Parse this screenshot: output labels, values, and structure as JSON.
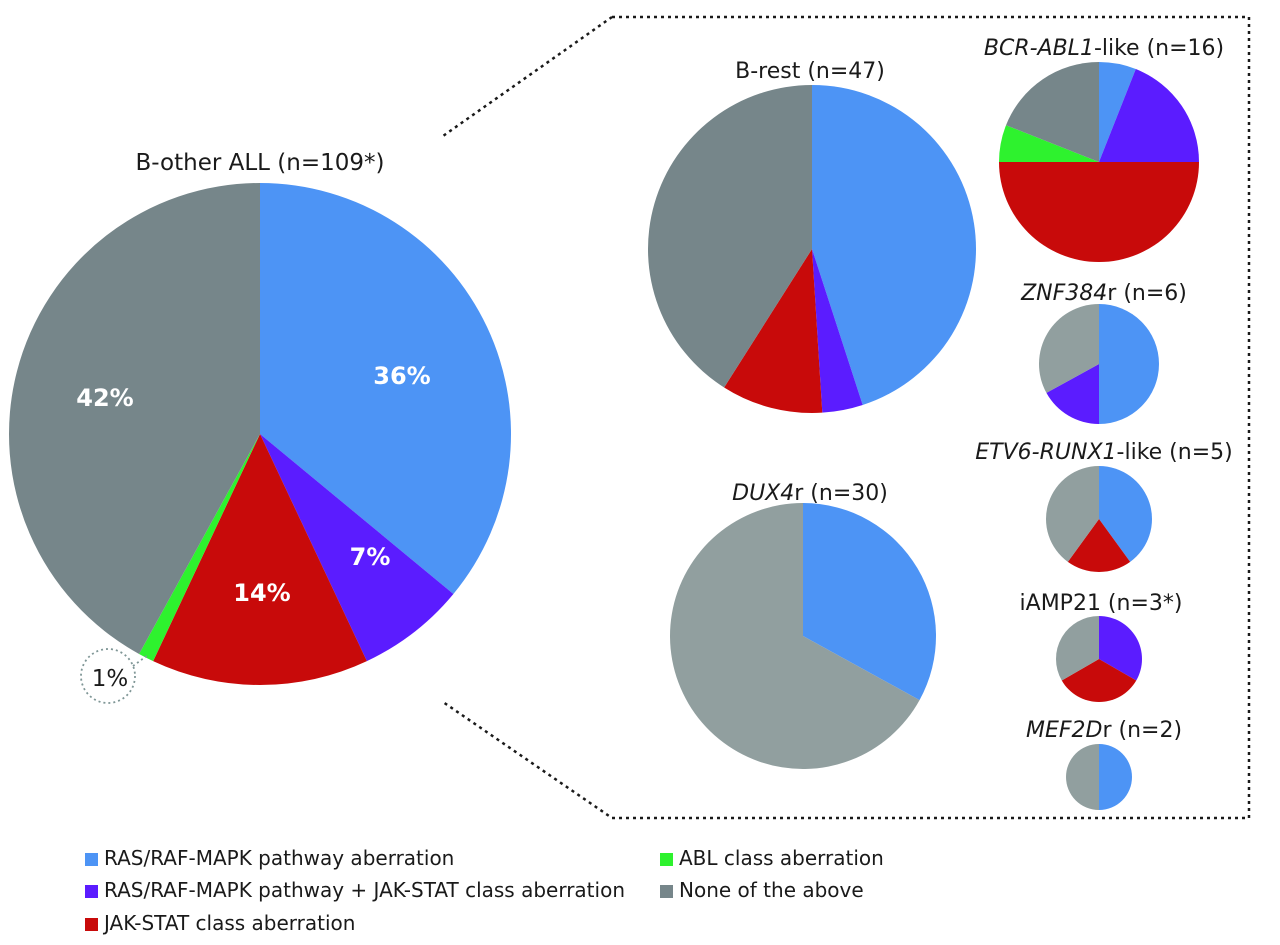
{
  "colors": {
    "ras": "#4d94f5",
    "ras_jak": "#5b1cff",
    "jak": "#c80a0a",
    "abl": "#2ef22e",
    "none": "#76868a",
    "none_light": "#919f9f"
  },
  "legend": {
    "items": [
      {
        "key": "ras",
        "label": "RAS/RAF-MAPK pathway aberration"
      },
      {
        "key": "ras_jak",
        "label": "RAS/RAF-MAPK pathway + JAK-STAT class aberration"
      },
      {
        "key": "jak",
        "label": "JAK-STAT class aberration"
      },
      {
        "key": "abl",
        "label": "ABL class aberration"
      },
      {
        "key": "none",
        "label": "None of the above"
      }
    ]
  },
  "chart_data": [
    {
      "type": "pie",
      "id": "main",
      "title": "B-other ALL (n=109*)",
      "slices": [
        {
          "key": "ras",
          "value": 36,
          "label": "36%"
        },
        {
          "key": "ras_jak",
          "value": 7,
          "label": "7%"
        },
        {
          "key": "jak",
          "value": 14,
          "label": "14%"
        },
        {
          "key": "abl",
          "value": 1,
          "label": "1%"
        },
        {
          "key": "none",
          "value": 42,
          "label": "42%"
        }
      ]
    },
    {
      "type": "pie",
      "id": "b-rest",
      "title": "B-rest (n=47)",
      "slices": [
        {
          "key": "ras",
          "value": 45
        },
        {
          "key": "ras_jak",
          "value": 4
        },
        {
          "key": "jak",
          "value": 10
        },
        {
          "key": "none",
          "value": 41
        }
      ]
    },
    {
      "type": "pie",
      "id": "dux4r",
      "title_italic": "DUX4",
      "title_rest": "r (n=30)",
      "slices": [
        {
          "key": "ras",
          "value": 33
        },
        {
          "key": "none_light",
          "value": 67
        }
      ]
    },
    {
      "type": "pie",
      "id": "bcr-abl1-like",
      "title_italic": "BCR-ABL1",
      "title_rest": "-like (n=16)",
      "slices": [
        {
          "key": "ras",
          "value": 6
        },
        {
          "key": "ras_jak",
          "value": 19
        },
        {
          "key": "jak",
          "value": 50
        },
        {
          "key": "abl",
          "value": 6
        },
        {
          "key": "none",
          "value": 19
        }
      ]
    },
    {
      "type": "pie",
      "id": "znf384r",
      "title_italic": "ZNF384",
      "title_rest": "r (n=6)",
      "slices": [
        {
          "key": "ras",
          "value": 50
        },
        {
          "key": "ras_jak",
          "value": 17
        },
        {
          "key": "none_light",
          "value": 33
        }
      ]
    },
    {
      "type": "pie",
      "id": "etv6-runx1-like",
      "title_italic": "ETV6-RUNX1",
      "title_rest": "-like (n=5)",
      "slices": [
        {
          "key": "ras",
          "value": 40
        },
        {
          "key": "jak",
          "value": 20
        },
        {
          "key": "none_light",
          "value": 40
        }
      ]
    },
    {
      "type": "pie",
      "id": "iamp21",
      "title": "iAMP21 (n=3*)",
      "slices": [
        {
          "key": "ras_jak",
          "value": 33.33
        },
        {
          "key": "jak",
          "value": 33.33
        },
        {
          "key": "none_light",
          "value": 33.34
        }
      ]
    },
    {
      "type": "pie",
      "id": "mef2dr",
      "title_italic": "MEF2D",
      "title_rest": "r (n=2)",
      "slices": [
        {
          "key": "ras",
          "value": 50
        },
        {
          "key": "none_light",
          "value": 50
        }
      ]
    }
  ]
}
